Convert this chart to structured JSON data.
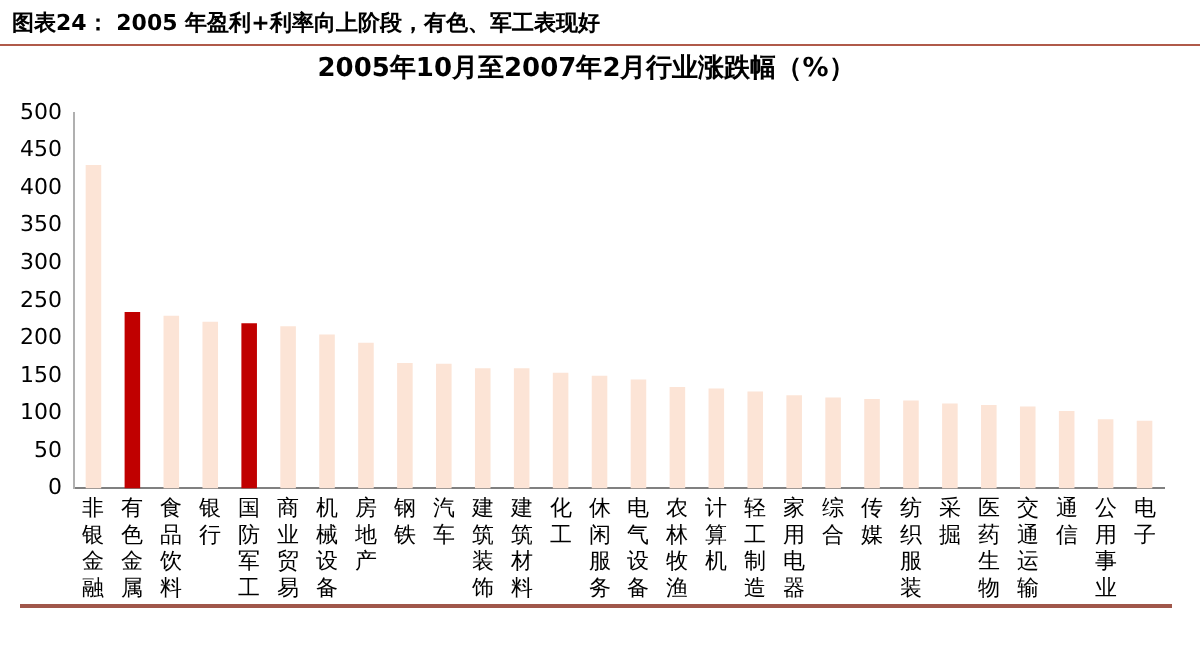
{
  "chart_data": {
    "type": "bar",
    "title": "图表24：  2005 年盈利+利率向上阶段，有色、军工表现好",
    "subtitle": "2005年10月至2007年2月行业涨跌幅（%）",
    "categories": [
      "非银金融",
      "有色金属",
      "食品饮料",
      "银行",
      "国防军工",
      "商业贸易",
      "机械设备",
      "房地产",
      "钢铁",
      "汽车",
      "建筑装饰",
      "建筑材料",
      "化工",
      "休闲服务",
      "电气设备",
      "农林牧渔",
      "计算机",
      "轻工制造",
      "家用电器",
      "综合",
      "传媒",
      "纺织服装",
      "采掘",
      "医药生物",
      "交通运输",
      "通信",
      "公用事业",
      "电子"
    ],
    "values": [
      431,
      235,
      230,
      222,
      220,
      216,
      205,
      194,
      167,
      166,
      160,
      160,
      154,
      150,
      145,
      135,
      133,
      129,
      124,
      121,
      119,
      117,
      113,
      111,
      109,
      103,
      92,
      90
    ],
    "colors": [
      "#fce4d6",
      "#c00000",
      "#fce4d6",
      "#fce4d6",
      "#c00000",
      "#fce4d6",
      "#fce4d6",
      "#fce4d6",
      "#fce4d6",
      "#fce4d6",
      "#fce4d6",
      "#fce4d6",
      "#fce4d6",
      "#fce4d6",
      "#fce4d6",
      "#fce4d6",
      "#fce4d6",
      "#fce4d6",
      "#fce4d6",
      "#fce4d6",
      "#fce4d6",
      "#fce4d6",
      "#fce4d6",
      "#fce4d6",
      "#fce4d6",
      "#fce4d6",
      "#fce4d6",
      "#fce4d6"
    ],
    "ylim": [
      0,
      500
    ],
    "yticks": [
      0,
      50,
      100,
      150,
      200,
      250,
      300,
      350,
      400,
      450,
      500
    ],
    "grid": false,
    "legend": false
  }
}
